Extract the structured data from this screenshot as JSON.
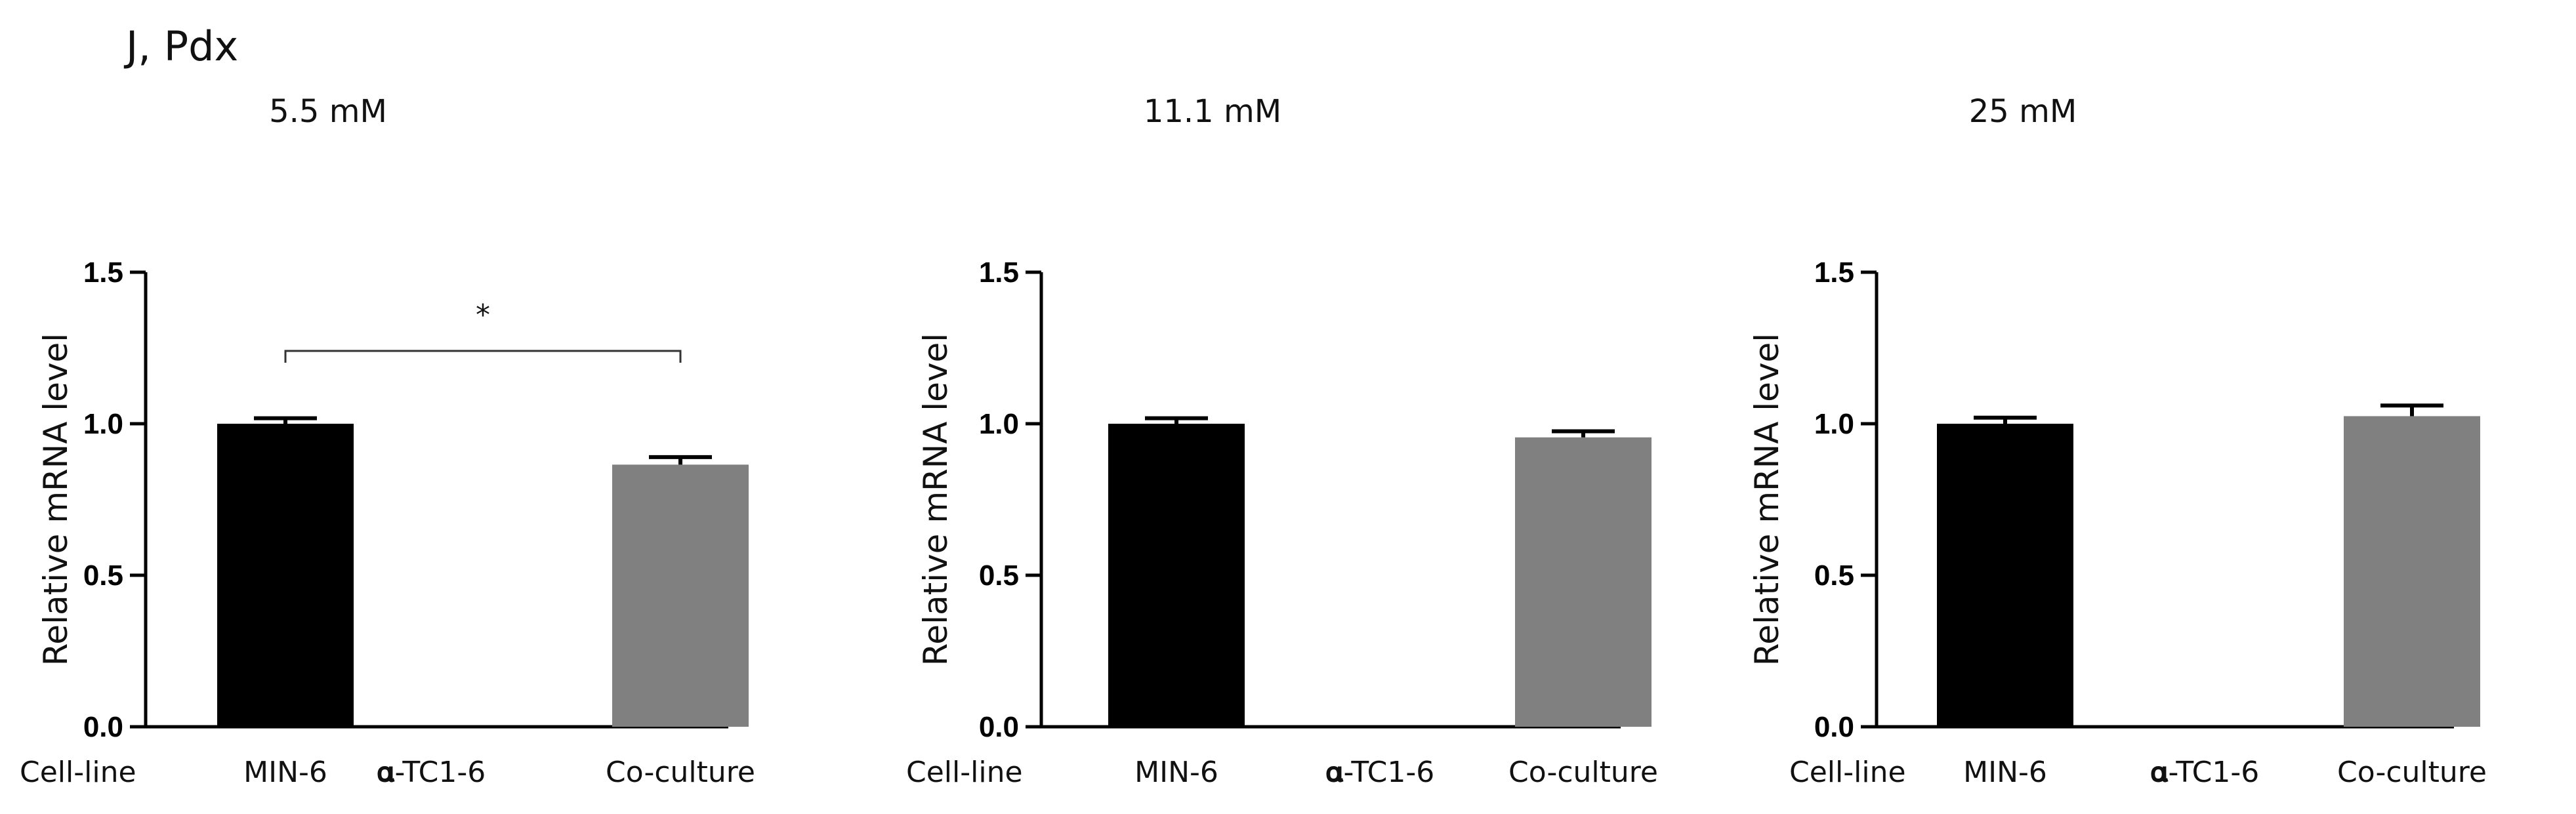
{
  "figure": {
    "panel_label": "J, Pdx",
    "row_label": "Cell-line"
  },
  "chart_data": [
    {
      "type": "bar",
      "title": "5.5 mM",
      "ylabel": "Relative mRNA level",
      "categories": [
        "MIN-6",
        "𝛂-TC1-6",
        "Co-culture"
      ],
      "values": [
        1.0,
        0.0,
        0.865
      ],
      "errors": [
        0.018,
        0.0,
        0.025
      ],
      "bar_colors": [
        "#000000",
        "#000000",
        "#808080"
      ],
      "ylim": [
        0,
        1.5
      ],
      "yticks": [
        "0.0",
        "0.5",
        "1.0",
        "1.5"
      ],
      "grid": false,
      "significance": [
        {
          "from": 0,
          "to": 2,
          "label": "*"
        }
      ]
    },
    {
      "type": "bar",
      "title": "11.1 mM",
      "ylabel": "Relative mRNA level",
      "categories": [
        "MIN-6",
        "𝛂-TC1-6",
        "Co-culture"
      ],
      "values": [
        1.0,
        0.0,
        0.955
      ],
      "errors": [
        0.018,
        0.0,
        0.02
      ],
      "bar_colors": [
        "#000000",
        "#000000",
        "#808080"
      ],
      "ylim": [
        0,
        1.5
      ],
      "yticks": [
        "0.0",
        "0.5",
        "1.0",
        "1.5"
      ],
      "grid": false,
      "significance": []
    },
    {
      "type": "bar",
      "title": "25 mM",
      "ylabel": "Relative mRNA level",
      "categories": [
        "MIN-6",
        "𝛂-TC1-6",
        "Co-culture"
      ],
      "values": [
        1.0,
        0.0,
        1.025
      ],
      "errors": [
        0.02,
        0.0,
        0.035
      ],
      "bar_colors": [
        "#000000",
        "#000000",
        "#808080"
      ],
      "ylim": [
        0,
        1.5
      ],
      "yticks": [
        "0.0",
        "0.5",
        "1.0",
        "1.5"
      ],
      "grid": false,
      "significance": []
    }
  ]
}
